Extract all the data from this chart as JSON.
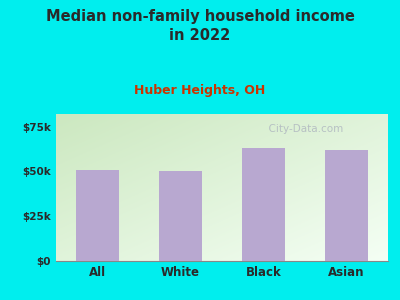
{
  "categories": [
    "All",
    "White",
    "Black",
    "Asian"
  ],
  "values": [
    51000,
    50000,
    63000,
    62000
  ],
  "bar_color": "#B8A8D0",
  "title": "Median non-family household income\nin 2022",
  "subtitle": "Huber Heights, OH",
  "background_color": "#00EEEE",
  "plot_bg_topleft": "#cce8c0",
  "plot_bg_bottomright": "#f5fff5",
  "title_color": "#2a2a2a",
  "subtitle_color": "#cc3300",
  "ytick_labels": [
    "$0",
    "$25k",
    "$50k",
    "$75k"
  ],
  "ytick_values": [
    0,
    25000,
    50000,
    75000
  ],
  "ylim": [
    0,
    82000
  ],
  "watermark": "  City-Data.com",
  "watermark_color": "#b0b8c0"
}
